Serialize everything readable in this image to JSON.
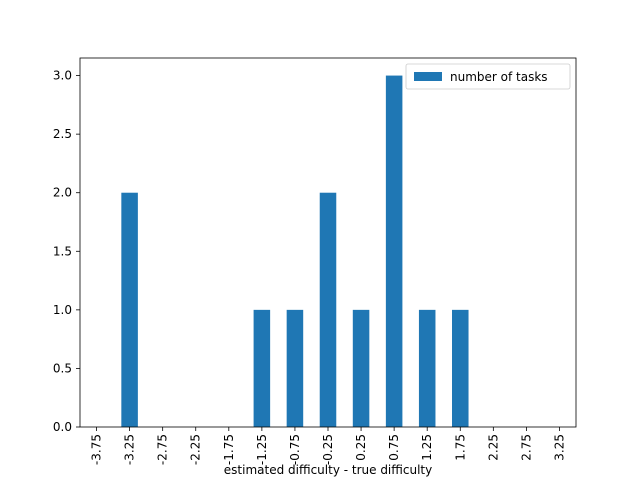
{
  "chart_data": {
    "type": "bar",
    "categories": [
      "-3.75",
      "-3.25",
      "-2.75",
      "-2.25",
      "-1.75",
      "-1.25",
      "-0.75",
      "-0.25",
      "0.25",
      "0.75",
      "1.25",
      "1.75",
      "2.25",
      "2.75",
      "3.25"
    ],
    "series": [
      {
        "name": "number of tasks",
        "color": "#1f77b4",
        "values": [
          0,
          2,
          0,
          0,
          0,
          1,
          1,
          2,
          1,
          3,
          1,
          1,
          0,
          0,
          0
        ]
      }
    ],
    "x_label": "estimated difficulty - true difficulty",
    "ylim": [
      0,
      3.15
    ],
    "yticks": [
      {
        "value": 0,
        "label": "0.0"
      },
      0.5,
      {
        "value": 1,
        "label": "1.0"
      },
      1.5,
      {
        "value": 2,
        "label": "2.0"
      },
      2.5,
      {
        "value": 3,
        "label": "3.0"
      }
    ],
    "legend": "upper right"
  }
}
